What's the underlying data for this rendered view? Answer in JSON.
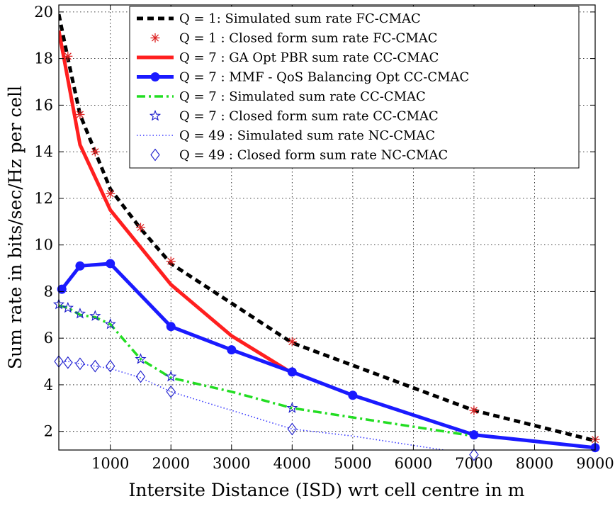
{
  "chart_data": {
    "type": "line",
    "title": "",
    "xlabel": "Intersite Distance (ISD) wrt cell centre in m",
    "ylabel": "Sum rate in bits/sec/Hz per cell",
    "xlim": [
      150,
      9000
    ],
    "ylim": [
      1.2,
      20.3
    ],
    "xticks": [
      1000,
      2000,
      3000,
      4000,
      5000,
      6000,
      7000,
      8000,
      9000
    ],
    "yticks": [
      2,
      4,
      6,
      8,
      10,
      12,
      14,
      16,
      18,
      20
    ],
    "grid": true,
    "legend_position": "top-right",
    "series": [
      {
        "name": "Q = 1: Simulated sum rate FC-CMAC",
        "style": "dashed",
        "color": "#000000",
        "marker": "none",
        "x": [
          150,
          300,
          500,
          750,
          1000,
          1500,
          2000,
          3000,
          4000,
          7000,
          9000
        ],
        "y": [
          19.9,
          18.0,
          15.6,
          14.0,
          12.4,
          10.7,
          9.2,
          7.5,
          5.8,
          2.9,
          1.6
        ]
      },
      {
        "name": "Q = 1 : Closed form sum rate FC-CMAC",
        "style": "none",
        "color": "#dd2222",
        "marker": "asterisk",
        "x": [
          300,
          500,
          750,
          1000,
          1500,
          2000,
          4000,
          7000,
          9000
        ],
        "y": [
          18.1,
          15.6,
          14.0,
          12.2,
          10.75,
          9.3,
          5.85,
          2.9,
          1.65
        ]
      },
      {
        "name": "Q = 7 : GA Opt PBR sum rate CC-CMAC",
        "style": "solid",
        "color": "#ff1f1f",
        "marker": "none",
        "x": [
          150,
          500,
          1000,
          2000,
          3000,
          4000
        ],
        "y": [
          19.2,
          14.3,
          11.5,
          8.3,
          6.1,
          4.5
        ]
      },
      {
        "name": "Q = 7 : MMF - QoS Balancing Opt CC-CMAC",
        "style": "solid",
        "color": "#1a1aff",
        "marker": "circle",
        "x": [
          200,
          500,
          1000,
          2000,
          3000,
          4000,
          5000,
          7000,
          9000
        ],
        "y": [
          8.1,
          9.1,
          9.2,
          6.5,
          5.5,
          4.55,
          3.55,
          1.85,
          1.3
        ]
      },
      {
        "name": "Q = 7 : Simulated sum rate CC-CMAC",
        "style": "dashdot",
        "color": "#22dd22",
        "marker": "none",
        "x": [
          150,
          300,
          500,
          750,
          1000,
          1500,
          2000,
          3000,
          4000,
          5000,
          7000
        ],
        "y": [
          7.4,
          7.3,
          7.0,
          6.9,
          6.6,
          5.1,
          4.3,
          3.7,
          3.0,
          2.6,
          1.8
        ]
      },
      {
        "name": "Q = 7 : Closed form sum rate CC-CMAC",
        "style": "none",
        "color": "#1a1acc",
        "marker": "star",
        "x": [
          150,
          300,
          500,
          750,
          1000,
          1500,
          2000,
          4000
        ],
        "y": [
          7.45,
          7.3,
          7.05,
          6.95,
          6.6,
          5.1,
          4.35,
          3.0
        ]
      },
      {
        "name": "Q = 49 : Simulated sum rate NC-CMAC",
        "style": "dotted",
        "color": "#3a3aff",
        "marker": "none",
        "x": [
          150,
          300,
          500,
          750,
          1000,
          1500,
          2000,
          3000,
          4000,
          5000,
          7000,
          9000
        ],
        "y": [
          5.0,
          5.0,
          4.9,
          4.8,
          4.7,
          4.3,
          3.7,
          2.9,
          2.1,
          1.8,
          1.0,
          0.7
        ]
      },
      {
        "name": "Q = 49 : Closed form sum rate NC-CMAC",
        "style": "none",
        "color": "#1a1acc",
        "marker": "diamond",
        "x": [
          150,
          300,
          500,
          750,
          1000,
          1500,
          2000,
          4000,
          7000,
          9000
        ],
        "y": [
          5.0,
          4.95,
          4.9,
          4.8,
          4.8,
          4.35,
          3.7,
          2.1,
          1.0,
          0.75
        ]
      }
    ]
  }
}
